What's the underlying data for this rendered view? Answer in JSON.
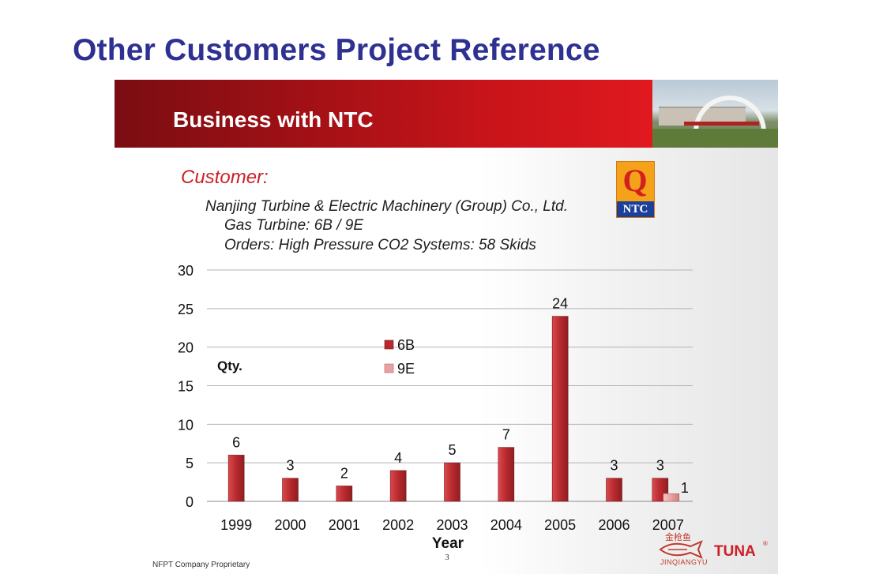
{
  "slide": {
    "title": "Other Customers Project Reference",
    "banner_title": "Business with NTC",
    "customer_label": "Customer:",
    "customer_name": "Nanjing Turbine & Electric Machinery (Group) Co., Ltd.",
    "gas_turbine": "Gas Turbine: 6B / 9E",
    "orders": "Orders: High Pressure CO2 Systems: 58 Skids",
    "logo_text": "NTC",
    "logo_mark": "Q",
    "footer_note": "NFPT Company Proprietary",
    "page_number": "3",
    "brand_name": "TUNA",
    "brand_mark": "®",
    "brand_cn": "金枪鱼",
    "brand_pinyin": "JINQIANGYU"
  },
  "colors": {
    "title": "#2e3192",
    "banner_dark": "#7a0d12",
    "banner_light": "#e0191f",
    "customer": "#cc1f26",
    "bar_6b": "#b8292e",
    "bar_9e": "#e8a0a0"
  },
  "icons": {
    "ntc_logo": "ntc-logo-icon",
    "tuna_logo": "tuna-fish-icon"
  },
  "chart_data": {
    "type": "bar",
    "xlabel": "Year",
    "ylabel": "Qty.",
    "ylim": [
      0,
      30
    ],
    "yticks": [
      0,
      5,
      10,
      15,
      20,
      25,
      30
    ],
    "grid": true,
    "legend_position": "upper-center",
    "categories": [
      "1999",
      "2000",
      "2001",
      "2002",
      "2003",
      "2004",
      "2005",
      "2006",
      "2007"
    ],
    "series": [
      {
        "name": "6B",
        "color": "#b8292e",
        "values": [
          6,
          3,
          2,
          4,
          5,
          7,
          24,
          3,
          3
        ]
      },
      {
        "name": "9E",
        "color": "#e8a0a0",
        "values": [
          null,
          null,
          null,
          null,
          null,
          null,
          null,
          null,
          1
        ]
      }
    ]
  }
}
